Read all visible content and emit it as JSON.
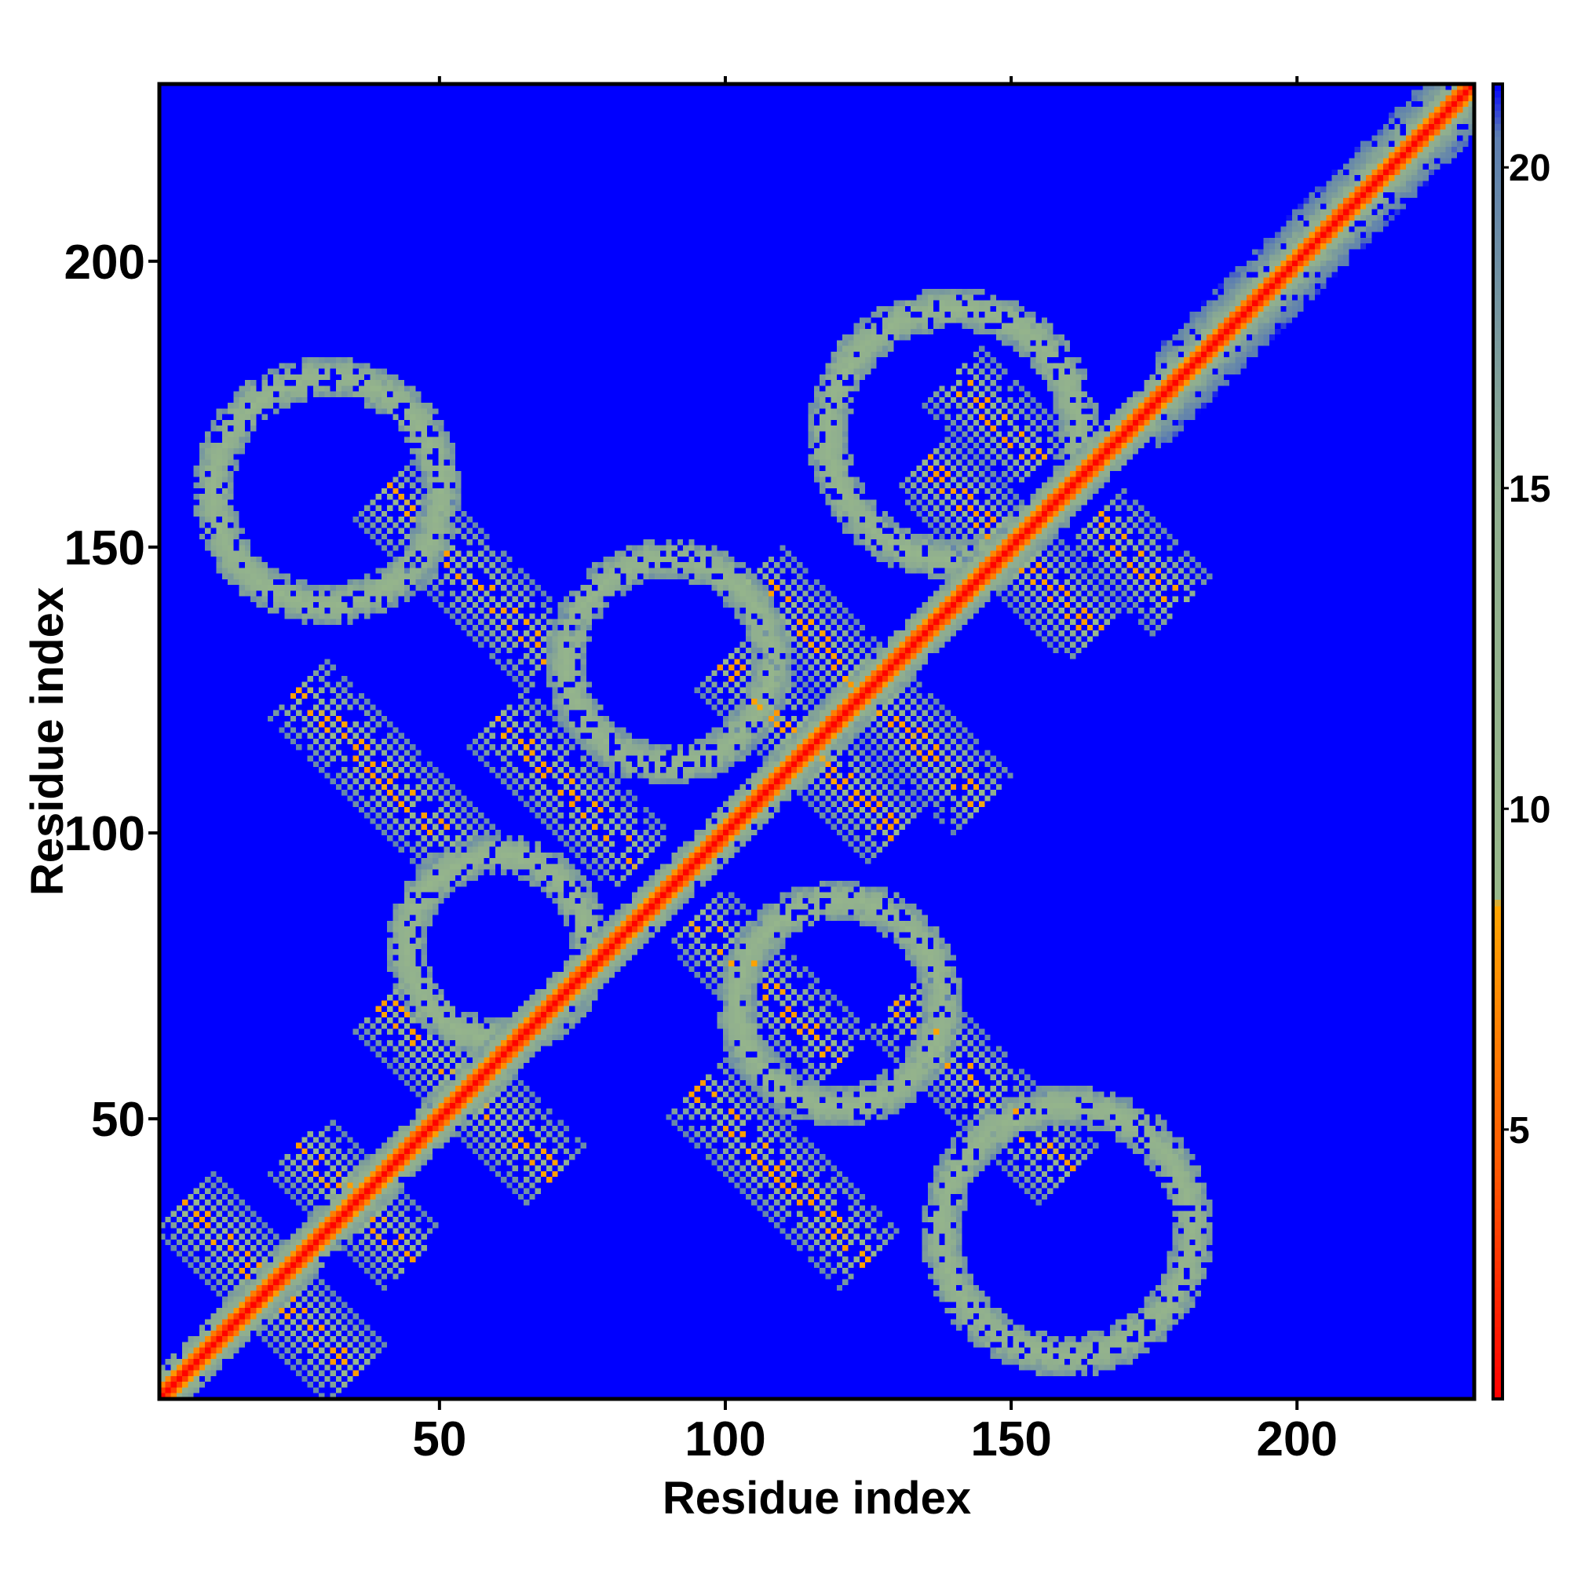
{
  "chart_data": {
    "type": "heatmap",
    "title": "",
    "xlabel": "Residue index",
    "ylabel": "Residue index",
    "xlim": [
      1,
      231
    ],
    "ylim": [
      1,
      231
    ],
    "x_ticks": [
      50,
      100,
      150,
      200
    ],
    "y_ticks": [
      50,
      100,
      150,
      200
    ],
    "x_tick_labels": [
      "50",
      "100",
      "150",
      "200"
    ],
    "y_tick_labels": [
      "50",
      "100",
      "150",
      "200"
    ],
    "grid": false,
    "colorbar": {
      "range": [
        0.8,
        21.3
      ],
      "ticks": [
        5,
        10,
        15,
        20
      ],
      "tick_labels": [
        "5",
        "10",
        "15",
        "20"
      ],
      "position": "right",
      "stops": [
        {
          "value": 0.8,
          "color": "#ff0000"
        },
        {
          "value": 4.5,
          "color": "#ff5a00"
        },
        {
          "value": 8.5,
          "color": "#ffa500"
        },
        {
          "value": 8.6,
          "color": "#98b88a"
        },
        {
          "value": 15.0,
          "color": "#8fae8f"
        },
        {
          "value": 20.5,
          "color": "#5d7fb0"
        },
        {
          "value": 21.3,
          "color": "#0000ff"
        }
      ]
    },
    "background_value": 21.3,
    "description_of_values": "pairwise distance-like values; low (red) along diagonal, contact bands ~10 elsewhere",
    "features": {
      "main_diagonal": {
        "from": 1,
        "to": 231
      },
      "bands_perpendicular_centers": [
        {
          "x_plus_y": 40,
          "range_x": [
            5,
            35
          ]
        },
        {
          "x_plus_y": 70,
          "range_x": [
            30,
            45
          ]
        },
        {
          "x_plus_y": 110,
          "range_x": [
            50,
            70
          ]
        },
        {
          "x_plus_y": 150,
          "range_x": [
            25,
            55
          ]
        },
        {
          "x_plus_y": 180,
          "range_x": [
            60,
            85
          ]
        },
        {
          "x_plus_y": 200,
          "range_x": [
            40,
            70
          ]
        },
        {
          "x_plus_y": 230,
          "range_x": [
            100,
            130
          ]
        },
        {
          "x_plus_y": 250,
          "range_x": [
            110,
            145
          ]
        },
        {
          "x_plus_y": 300,
          "range_x": [
            140,
            165
          ]
        },
        {
          "x_plus_y": 320,
          "range_x": [
            165,
            180
          ]
        }
      ]
    }
  }
}
